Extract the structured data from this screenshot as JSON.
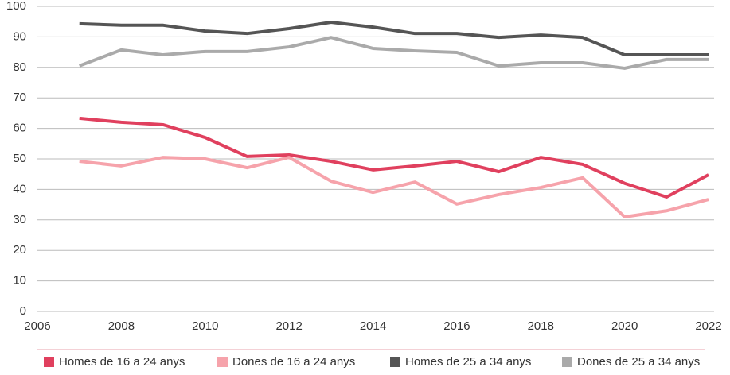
{
  "chart_data": {
    "type": "line",
    "x": [
      2007,
      2008,
      2009,
      2010,
      2011,
      2012,
      2013,
      2014,
      2015,
      2016,
      2017,
      2018,
      2019,
      2020,
      2021,
      2022
    ],
    "xlim": [
      2006,
      2022
    ],
    "xticks": [
      2006,
      2008,
      2010,
      2012,
      2014,
      2016,
      2018,
      2020,
      2022
    ],
    "ylim": [
      0,
      100
    ],
    "yticks": [
      0,
      10,
      20,
      30,
      40,
      50,
      60,
      70,
      80,
      90,
      100
    ],
    "grid": true,
    "legend": "bottom",
    "series": [
      {
        "name": "Homes de 16 a 24 anys",
        "color": "#e0405e",
        "values": [
          63.3,
          62,
          61.2,
          57,
          50.8,
          51.3,
          49.2,
          46.4,
          47.7,
          49.2,
          45.8,
          50.5,
          48.2,
          42,
          37.5,
          44.8
        ]
      },
      {
        "name": "Dones de 16 a 24 anys",
        "color": "#f6a3ab",
        "values": [
          49.2,
          47.7,
          50.5,
          50,
          47.1,
          50.5,
          42.7,
          39,
          42.4,
          35.2,
          38.3,
          40.6,
          43.8,
          31,
          33,
          36.7
        ]
      },
      {
        "name": "Homes de 25 a 34 anys",
        "color": "#555555",
        "values": [
          94.3,
          93.8,
          93.8,
          91.9,
          91.1,
          92.7,
          94.8,
          93.2,
          91.1,
          91.1,
          89.8,
          90.6,
          89.8,
          84.1,
          84.1,
          84.1
        ]
      },
      {
        "name": "Dones de 25 a 34 anys",
        "color": "#aaaaaa",
        "values": [
          80.5,
          85.7,
          84.1,
          85.2,
          85.2,
          86.7,
          89.8,
          86.2,
          85.4,
          84.9,
          80.5,
          81.5,
          81.5,
          79.7,
          82.6,
          82.6
        ]
      }
    ]
  }
}
